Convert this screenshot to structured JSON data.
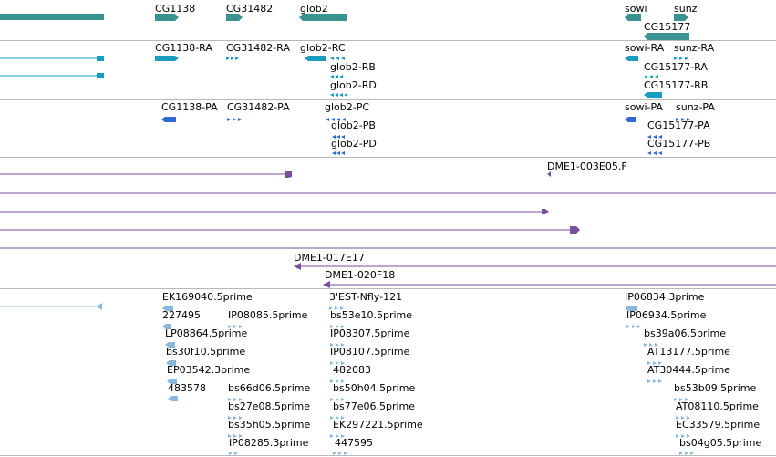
{
  "tracks": {
    "genes": {
      "labels": [
        "CG1138",
        "CG31482",
        "glob2",
        "sowi",
        "sunz",
        "CG15177"
      ],
      "color": "#3a9390"
    },
    "transcripts": {
      "labels": [
        "CG1138-RA",
        "CG31482-RA",
        "glob2-RC",
        "glob2-RB",
        "glob2-RD",
        "sowi-RA",
        "sunz-RA",
        "CG15177-RA",
        "CG15177-RB"
      ],
      "color": "#1a9cc0"
    },
    "proteins": {
      "labels": [
        "CG1138-PA",
        "CG31482-PA",
        "glob2-PC",
        "glob2-PB",
        "glob2-PD",
        "sowi-PA",
        "sunz-PA",
        "CG15177-PA",
        "CG15177-PB"
      ],
      "color": "#2f6ad0"
    },
    "bac_clones": {
      "labels": [
        "DME1-003E05.F",
        "DME1-017E17",
        "DME1-020F18"
      ],
      "color": "#7a4ea0"
    },
    "ests": {
      "labels": [
        "EK169040.5prime",
        "227495",
        "IP08085.5prime",
        "LP08864.5prime",
        "bs30f10.5prime",
        "EP03542.3prime",
        "483578",
        "bs66d06.5prime",
        "bs27e08.5prime",
        "bs35h05.5prime",
        "IP08285.3prime",
        "3'EST-Nfly-121",
        "bs53e10.5prime",
        "IP08307.5prime",
        "IP08107.5prime",
        "482083",
        "bs50h04.5prime",
        "bs77e06.5prime",
        "EK297221.5prime",
        "447595",
        "IP06834.3prime",
        "IP06934.5prime",
        "bs39a06.5prime",
        "AT13177.5prime",
        "AT30444.5prime",
        "bs53b09.5prime",
        "AT08110.5prime",
        "EC33579.5prime",
        "bs04g05.5prime"
      ],
      "color": "#8ab8dc"
    }
  }
}
